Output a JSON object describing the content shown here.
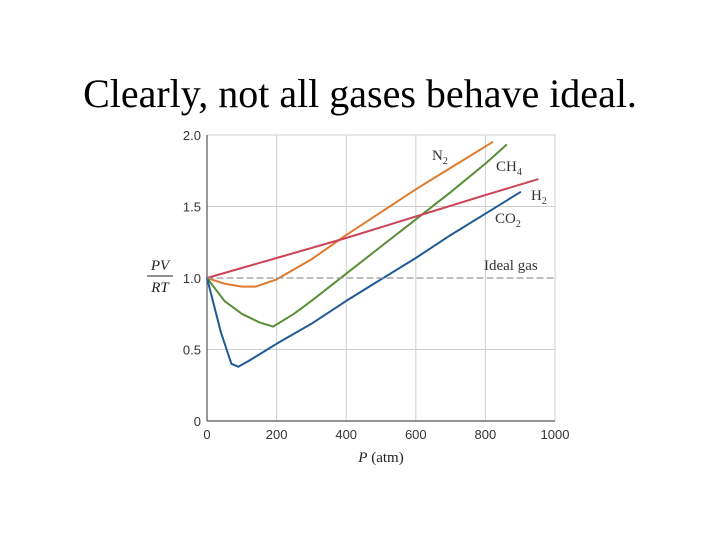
{
  "slide": {
    "title": "Clearly, not all gases behave ideal."
  },
  "chart_data": {
    "type": "line",
    "title": "Clearly, not all gases behave ideal.",
    "xlabel_italic": "P",
    "xlabel_rest": " (atm)",
    "ylabel_numerator": "PV",
    "ylabel_denominator": "RT",
    "xlim": [
      0,
      1000
    ],
    "ylim": [
      0,
      2.0
    ],
    "xticks": [
      "0",
      "200",
      "400",
      "600",
      "800",
      "1000"
    ],
    "xtick_values": [
      0,
      200,
      400,
      600,
      800,
      1000
    ],
    "yticks": [
      "0",
      "0.5",
      "1.0",
      "1.5",
      "2.0"
    ],
    "ytick_values": [
      0,
      0.5,
      1.0,
      1.5,
      2.0
    ],
    "grid": true,
    "series": [
      {
        "name": "N2",
        "label_main": "N",
        "label_sub": "2",
        "color": "#e07a2c",
        "x": [
          0,
          50,
          100,
          140,
          200,
          300,
          400,
          500,
          600,
          700,
          820
        ],
        "y": [
          1.0,
          0.96,
          0.94,
          0.94,
          0.99,
          1.13,
          1.3,
          1.46,
          1.62,
          1.77,
          1.95
        ]
      },
      {
        "name": "CH4",
        "label_main": "CH",
        "label_sub": "4",
        "color": "#5a8e3a",
        "x": [
          0,
          50,
          100,
          150,
          190,
          250,
          300,
          400,
          500,
          600,
          700,
          800,
          860
        ],
        "y": [
          1.0,
          0.84,
          0.75,
          0.69,
          0.66,
          0.75,
          0.84,
          1.03,
          1.22,
          1.41,
          1.6,
          1.8,
          1.93
        ]
      },
      {
        "name": "H2",
        "label_main": "H",
        "label_sub": "2",
        "color": "#cc4455",
        "x": [
          0,
          200,
          400,
          600,
          800,
          950
        ],
        "y": [
          1.0,
          1.14,
          1.28,
          1.43,
          1.58,
          1.69
        ]
      },
      {
        "name": "CO2",
        "label_main": "CO",
        "label_sub": "2",
        "color": "#1f5a96",
        "x": [
          0,
          40,
          70,
          90,
          120,
          200,
          300,
          400,
          500,
          600,
          700,
          800,
          900
        ],
        "y": [
          1.0,
          0.62,
          0.4,
          0.38,
          0.42,
          0.54,
          0.68,
          0.84,
          0.99,
          1.14,
          1.3,
          1.45,
          1.6
        ]
      },
      {
        "name": "Ideal gas",
        "label_main": "Ideal gas",
        "label_sub": "",
        "color": "#999999",
        "dashed": true,
        "x": [
          0,
          1000
        ],
        "y": [
          1.0,
          1.0
        ]
      }
    ]
  }
}
